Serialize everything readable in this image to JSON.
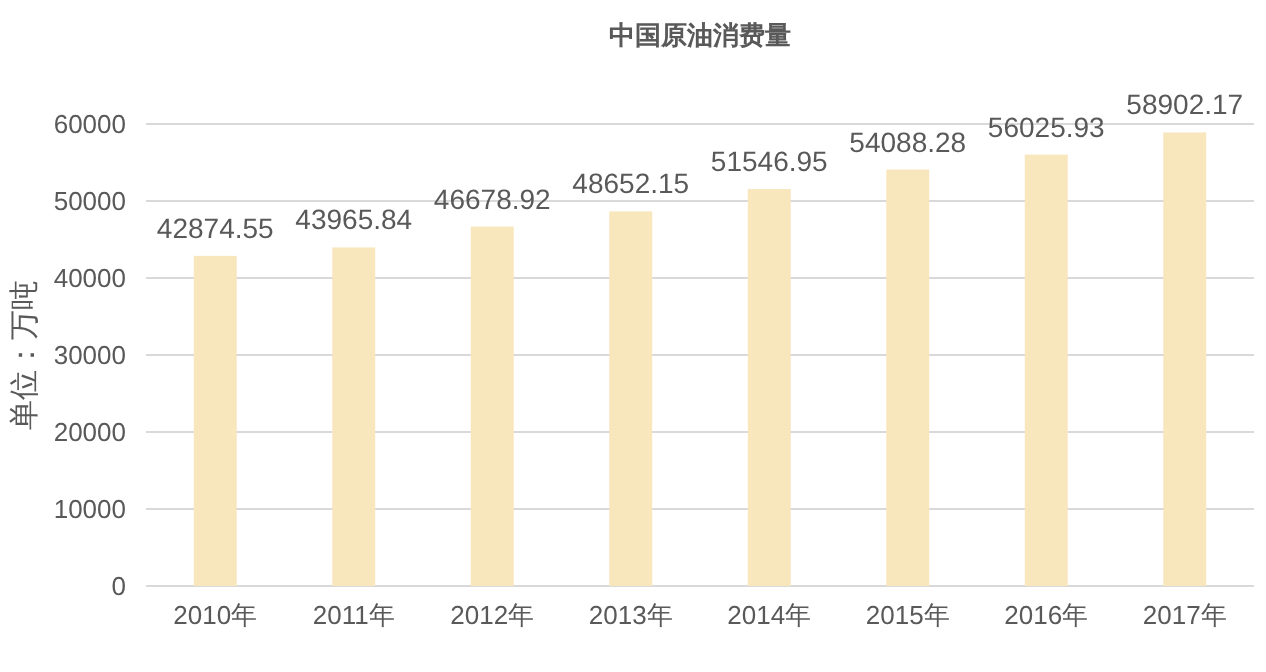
{
  "chart_data": {
    "type": "bar",
    "title": "中国原油消费量",
    "ylabel": "单位：万吨",
    "categories": [
      "2010年",
      "2011年",
      "2012年",
      "2013年",
      "2014年",
      "2015年",
      "2016年",
      "2017年"
    ],
    "values": [
      42874.55,
      43965.84,
      46678.92,
      48652.15,
      51546.95,
      54088.28,
      56025.93,
      58902.17
    ],
    "color": "#f8e6bd",
    "ylim": [
      0,
      60000
    ],
    "yticks": [
      0,
      10000,
      20000,
      30000,
      40000,
      50000,
      60000
    ],
    "grid": "y",
    "data_labels": true
  }
}
